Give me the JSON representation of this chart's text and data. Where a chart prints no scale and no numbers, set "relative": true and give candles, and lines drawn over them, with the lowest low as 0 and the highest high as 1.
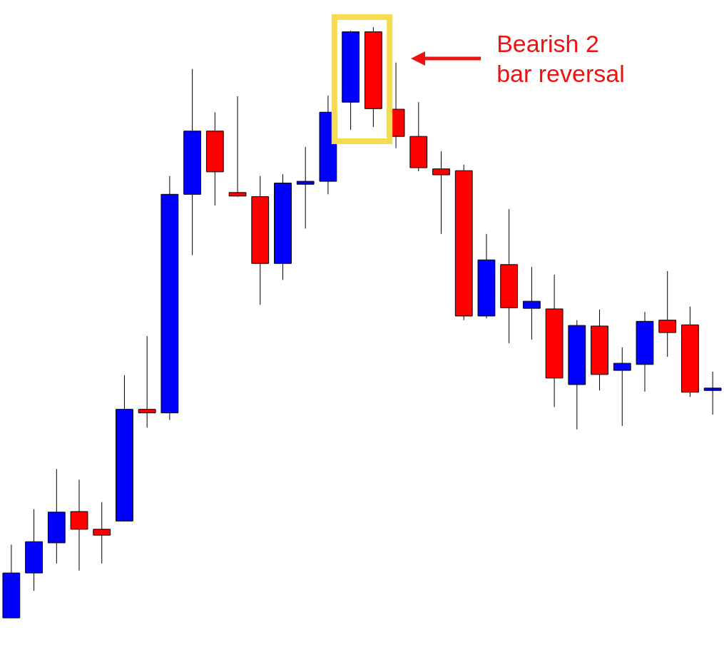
{
  "chart_data": {
    "type": "candlestick",
    "relative": true,
    "categories": [
      null,
      null,
      null,
      null,
      null,
      null,
      null,
      null,
      null,
      null,
      null,
      null,
      null,
      null,
      null,
      null,
      null,
      null,
      null,
      null,
      null,
      null,
      null,
      null,
      null,
      null,
      null,
      null,
      null,
      null,
      null,
      null
    ],
    "ohlc": [
      [
        0,
        0.124,
        0,
        0.076
      ],
      [
        0.076,
        0.184,
        0.046,
        0.129
      ],
      [
        0.127,
        0.252,
        0.092,
        0.179
      ],
      [
        0.18,
        0.234,
        0.08,
        0.15
      ],
      [
        0.15,
        0.196,
        0.092,
        0.14
      ],
      [
        0.164,
        0.411,
        0.164,
        0.353
      ],
      [
        0.353,
        0.477,
        0.322,
        0.347
      ],
      [
        0.347,
        0.748,
        0.335,
        0.717
      ],
      [
        0.717,
        0.929,
        0.614,
        0.824
      ],
      [
        0.824,
        0.856,
        0.698,
        0.755
      ],
      [
        0.72,
        0.883,
        0.713,
        0.714
      ],
      [
        0.713,
        0.748,
        0.53,
        0.6
      ],
      [
        0.6,
        0.751,
        0.572,
        0.736
      ],
      [
        0.734,
        0.797,
        0.659,
        0.739
      ],
      [
        0.739,
        0.884,
        0.717,
        0.856
      ],
      [
        0.873,
        0.994,
        0.826,
        0.992
      ],
      [
        0.992,
        1,
        0.831,
        0.862
      ],
      [
        0.861,
        0.94,
        0.795,
        0.815
      ],
      [
        0.815,
        0.873,
        0.756,
        0.762
      ],
      [
        0.76,
        0.79,
        0.65,
        0.75
      ],
      [
        0.757,
        0.767,
        0.504,
        0.511
      ],
      [
        0.511,
        0.65,
        0.507,
        0.606
      ],
      [
        0.598,
        0.692,
        0.465,
        0.525
      ],
      [
        0.524,
        0.594,
        0.471,
        0.536
      ],
      [
        0.523,
        0.581,
        0.357,
        0.406
      ],
      [
        0.395,
        0.504,
        0.319,
        0.495
      ],
      [
        0.494,
        0.522,
        0.385,
        0.412
      ],
      [
        0.419,
        0.458,
        0.325,
        0.431
      ],
      [
        0.429,
        0.518,
        0.383,
        0.502
      ],
      [
        0.504,
        0.587,
        0.442,
        0.483
      ],
      [
        0.496,
        0.527,
        0.374,
        0.382
      ],
      [
        0.385,
        0.417,
        0.344,
        0.389
      ]
    ],
    "colors": [
      "#0000ff",
      "#0000ff",
      "#0000ff",
      "#ff0000",
      "#ff0000",
      "#0000ff",
      "#ff0000",
      "#0000ff",
      "#0000ff",
      "#ff0000",
      "#ff0000",
      "#ff0000",
      "#0000ff",
      "#0000ff",
      "#0000ff",
      "#0000ff",
      "#ff0000",
      "#ff0000",
      "#ff0000",
      "#ff0000",
      "#ff0000",
      "#0000ff",
      "#ff0000",
      "#0000ff",
      "#ff0000",
      "#0000ff",
      "#ff0000",
      "#0000ff",
      "#0000ff",
      "#ff0000",
      "#ff0000",
      "#0000ff"
    ],
    "annotations": [
      "Bearish 2 bar reversal"
    ]
  }
}
